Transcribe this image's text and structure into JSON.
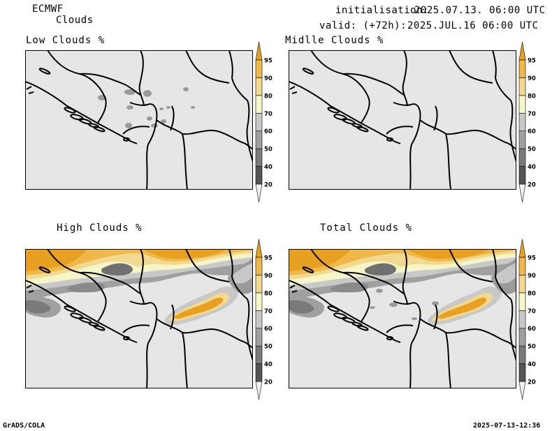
{
  "header": {
    "model": "ECMWF",
    "product": "Clouds",
    "init_label": "initialisation:",
    "init_value": "2025.07.13. 06:00 UTC",
    "valid_label": "valid: (+72h):",
    "valid_value": "2025.JUL.16 06:00 UTC"
  },
  "panels": [
    {
      "title": "Low Clouds %"
    },
    {
      "title": "Midlle Clouds %"
    },
    {
      "title": "High Clouds %"
    },
    {
      "title": "Total Clouds %"
    }
  ],
  "colorbar": {
    "levels": [
      "20",
      "40",
      "50",
      "60",
      "70",
      "80",
      "90",
      "95"
    ],
    "colors": [
      "#f2f2f2",
      "#555555",
      "#7a7a7a",
      "#a0a0a0",
      "#c8c8c8",
      "#f5f5c8",
      "#f3d890",
      "#f0b848",
      "#e8a020"
    ]
  },
  "footer": {
    "left": "GrADS/COLA",
    "right": "2025-07-13-12:36"
  },
  "colors": {
    "map_bg": "#e6e6e6",
    "border": "#000000"
  }
}
